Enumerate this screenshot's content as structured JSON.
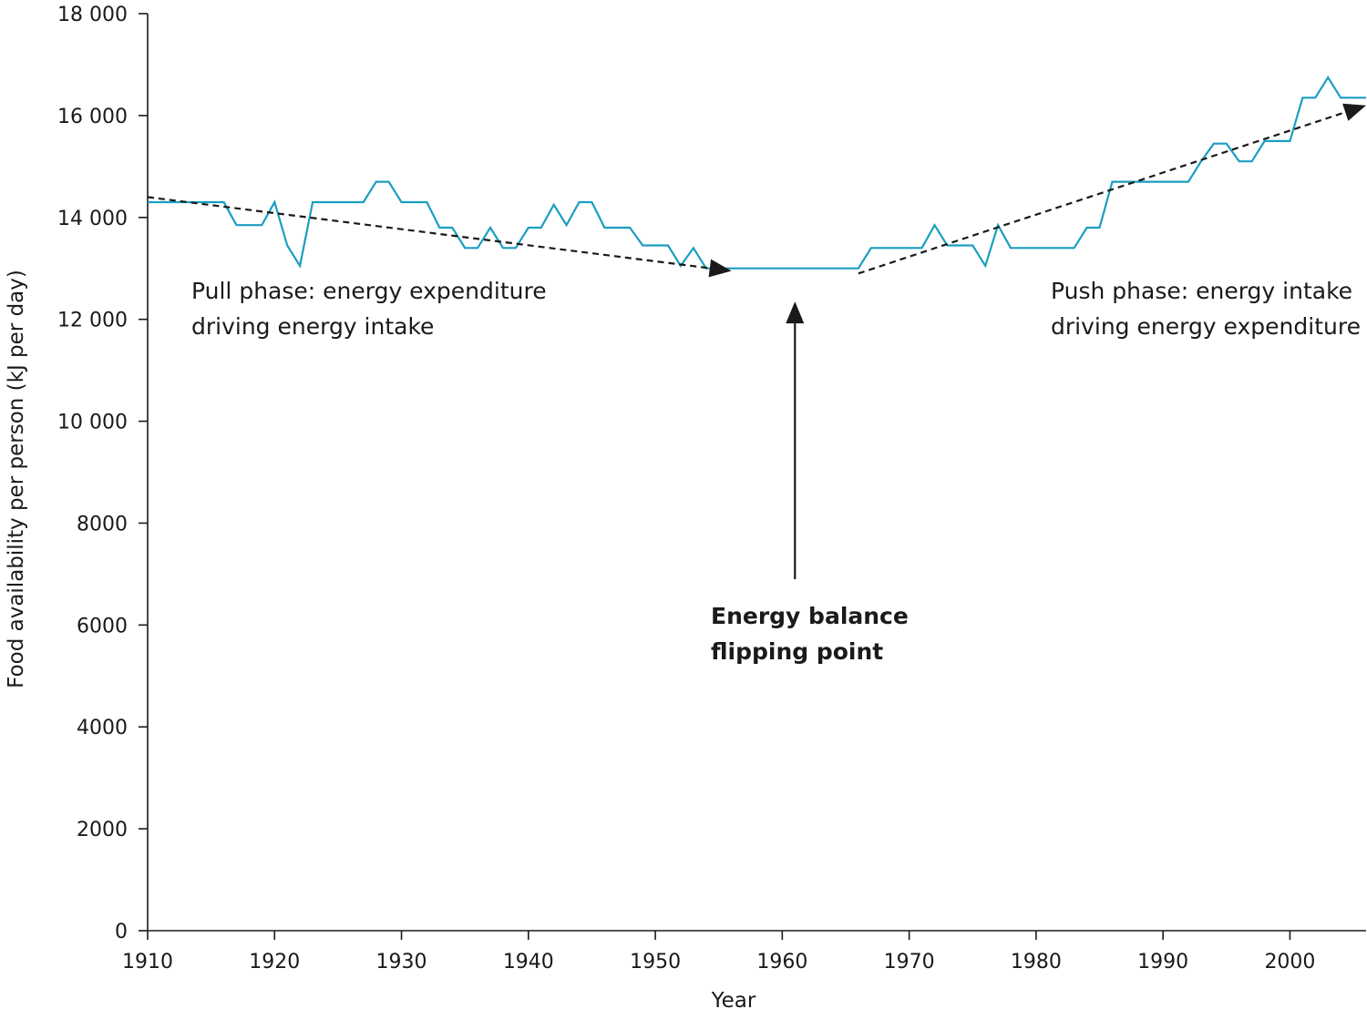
{
  "chart_data": {
    "type": "line",
    "xlabel": "Year",
    "ylabel": "Food availability per person (kJ per day)",
    "xlim": [
      1910,
      2006
    ],
    "ylim": [
      0,
      18000
    ],
    "x_ticks": [
      1910,
      1920,
      1930,
      1940,
      1950,
      1960,
      1970,
      1980,
      1990,
      2000
    ],
    "y_ticks": [
      0,
      2000,
      4000,
      6000,
      8000,
      10000,
      12000,
      14000,
      16000,
      18000
    ],
    "y_tick_labels": [
      "0",
      "2000",
      "4000",
      "6000",
      "8000",
      "10 000",
      "12 000",
      "14 000",
      "16 000",
      "18 000"
    ],
    "line_color": "#1b9ec1",
    "series": [
      {
        "x": [
          1910,
          1911,
          1912,
          1913,
          1914,
          1915,
          1916,
          1917,
          1918,
          1919,
          1920,
          1921,
          1922,
          1923,
          1924,
          1925,
          1926,
          1927,
          1928,
          1929,
          1930,
          1931,
          1932,
          1933,
          1934,
          1935,
          1936,
          1937,
          1938,
          1939,
          1940,
          1941,
          1942,
          1943,
          1944,
          1945,
          1946,
          1947,
          1948,
          1949,
          1950,
          1951,
          1952,
          1953,
          1954,
          1955,
          1956,
          1957,
          1958,
          1959,
          1960,
          1961,
          1962,
          1963,
          1964,
          1965,
          1966,
          1967,
          1968,
          1969,
          1970,
          1971,
          1972,
          1973,
          1974,
          1975,
          1976,
          1977,
          1978,
          1979,
          1980,
          1981,
          1982,
          1983,
          1984,
          1985,
          1986,
          1987,
          1988,
          1989,
          1990,
          1991,
          1992,
          1993,
          1994,
          1995,
          1996,
          1997,
          1998,
          1999,
          2000,
          2001,
          2002,
          2003,
          2004,
          2005,
          2006
        ],
        "y": [
          14300,
          14300,
          14300,
          14300,
          14300,
          14300,
          14300,
          13850,
          13850,
          13850,
          14300,
          13450,
          13050,
          14300,
          14300,
          14300,
          14300,
          14300,
          14700,
          14700,
          14300,
          14300,
          14300,
          13800,
          13800,
          13400,
          13400,
          13800,
          13400,
          13400,
          13800,
          13800,
          14250,
          13850,
          14300,
          14300,
          13800,
          13800,
          13800,
          13450,
          13450,
          13450,
          13050,
          13400,
          13000,
          13000,
          13000,
          13000,
          13000,
          13000,
          13000,
          13000,
          13000,
          13000,
          13000,
          13000,
          13000,
          13400,
          13400,
          13400,
          13400,
          13400,
          13850,
          13450,
          13450,
          13450,
          13050,
          13850,
          13400,
          13400,
          13400,
          13400,
          13400,
          13400,
          13800,
          13800,
          14700,
          14700,
          14700,
          14700,
          14700,
          14700,
          14700,
          15100,
          15450,
          15450,
          15100,
          15100,
          15500,
          15500,
          15500,
          16350,
          16350,
          16750,
          16350,
          16350,
          16350
        ]
      }
    ],
    "trend_arrows": [
      {
        "from": [
          1910,
          14400
        ],
        "to": [
          1956,
          12950
        ]
      },
      {
        "from": [
          1966,
          12900
        ],
        "to": [
          2006,
          16200
        ]
      }
    ],
    "flip_arrow": {
      "x": 1961,
      "from_y": 6900,
      "to_y": 12350
    },
    "annotations": {
      "pull_line1": "Pull phase: energy expenditure",
      "pull_line2": "driving energy intake",
      "push_line1": "Push phase: energy intake",
      "push_line2": "driving energy expenditure",
      "flip_line1": "Energy balance",
      "flip_line2": "flipping point"
    }
  }
}
